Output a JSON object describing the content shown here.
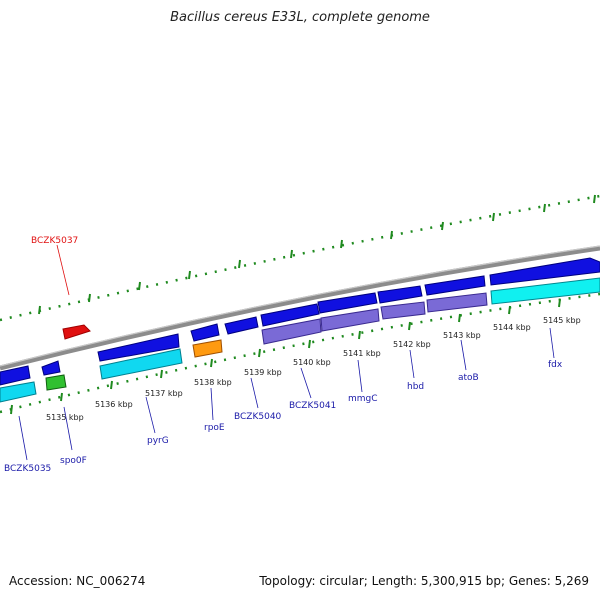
{
  "title": "Bacillus cereus E33L, complete genome",
  "footer": {
    "accession": "Accession: NC_006274",
    "summary": "Topology: circular; Length: 5,300,915 bp; Genes: 5,269"
  },
  "colors": {
    "backbone": "#8c8c8c",
    "tick": "#1f8a1f",
    "gene_label": "#1a1aa8",
    "highlight_label": "#e01010",
    "cds": "#1010e0",
    "rna": "#10d8f0",
    "misc": "#7a6ad6",
    "orange": "#ff9a10",
    "green": "#30c030",
    "red": "#e01010"
  },
  "position_labels": [
    "5135 kbp",
    "5136 kbp",
    "5137 kbp",
    "5138 kbp",
    "5139 kbp",
    "5140 kbp",
    "5141 kbp",
    "5142 kbp",
    "5143 kbp",
    "5144 kbp",
    "5145 kbp"
  ],
  "gene_labels": {
    "bczk5037": "BCZK5037",
    "bczk5035": "BCZK5035",
    "spo0f": "spo0F",
    "pyrg": "pyrG",
    "rpoe": "rpoE",
    "bczk5040": "BCZK5040",
    "bczk5041": "BCZK5041",
    "mmgc": "mmgC",
    "hbd": "hbd",
    "atob": "atoB",
    "fdx": "fdx"
  }
}
